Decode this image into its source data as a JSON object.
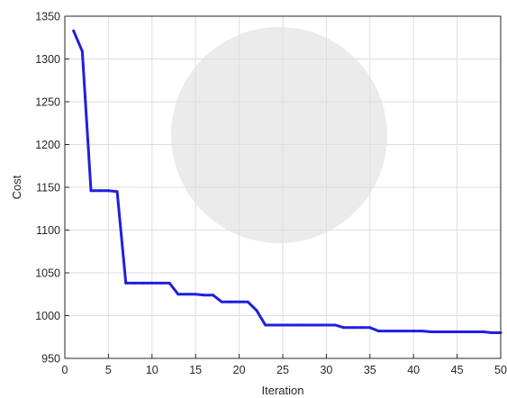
{
  "chart_data": {
    "type": "line",
    "title": "",
    "xlabel": "Iteration",
    "ylabel": "Cost",
    "xlim": [
      0,
      50
    ],
    "ylim": [
      950,
      1350
    ],
    "xticks": [
      "0",
      "5",
      "10",
      "15",
      "20",
      "25",
      "30",
      "35",
      "40",
      "45",
      "50"
    ],
    "yticks": [
      "950",
      "1000",
      "1050",
      "1100",
      "1150",
      "1200",
      "1250",
      "1300",
      "1350"
    ],
    "grid": true,
    "legend": "none",
    "series": [
      {
        "color": "#1f1fe0",
        "x": [
          1,
          2,
          3,
          4,
          5,
          6,
          7,
          8,
          9,
          10,
          11,
          12,
          13,
          14,
          15,
          16,
          17,
          18,
          19,
          20,
          21,
          22,
          23,
          24,
          25,
          26,
          27,
          28,
          29,
          30,
          31,
          32,
          33,
          34,
          35,
          36,
          37,
          38,
          39,
          40,
          41,
          42,
          43,
          44,
          45,
          46,
          47,
          48,
          49,
          50
        ],
        "y": [
          1333,
          1309,
          1146,
          1146,
          1146,
          1145,
          1038,
          1038,
          1038,
          1038,
          1038,
          1038,
          1025,
          1025,
          1025,
          1024,
          1024,
          1016,
          1016,
          1016,
          1016,
          1006,
          989,
          989,
          989,
          989,
          989,
          989,
          989,
          989,
          989,
          986,
          986,
          986,
          986,
          982,
          982,
          982,
          982,
          982,
          982,
          981,
          981,
          981,
          981,
          981,
          981,
          981,
          980,
          980
        ]
      }
    ]
  }
}
